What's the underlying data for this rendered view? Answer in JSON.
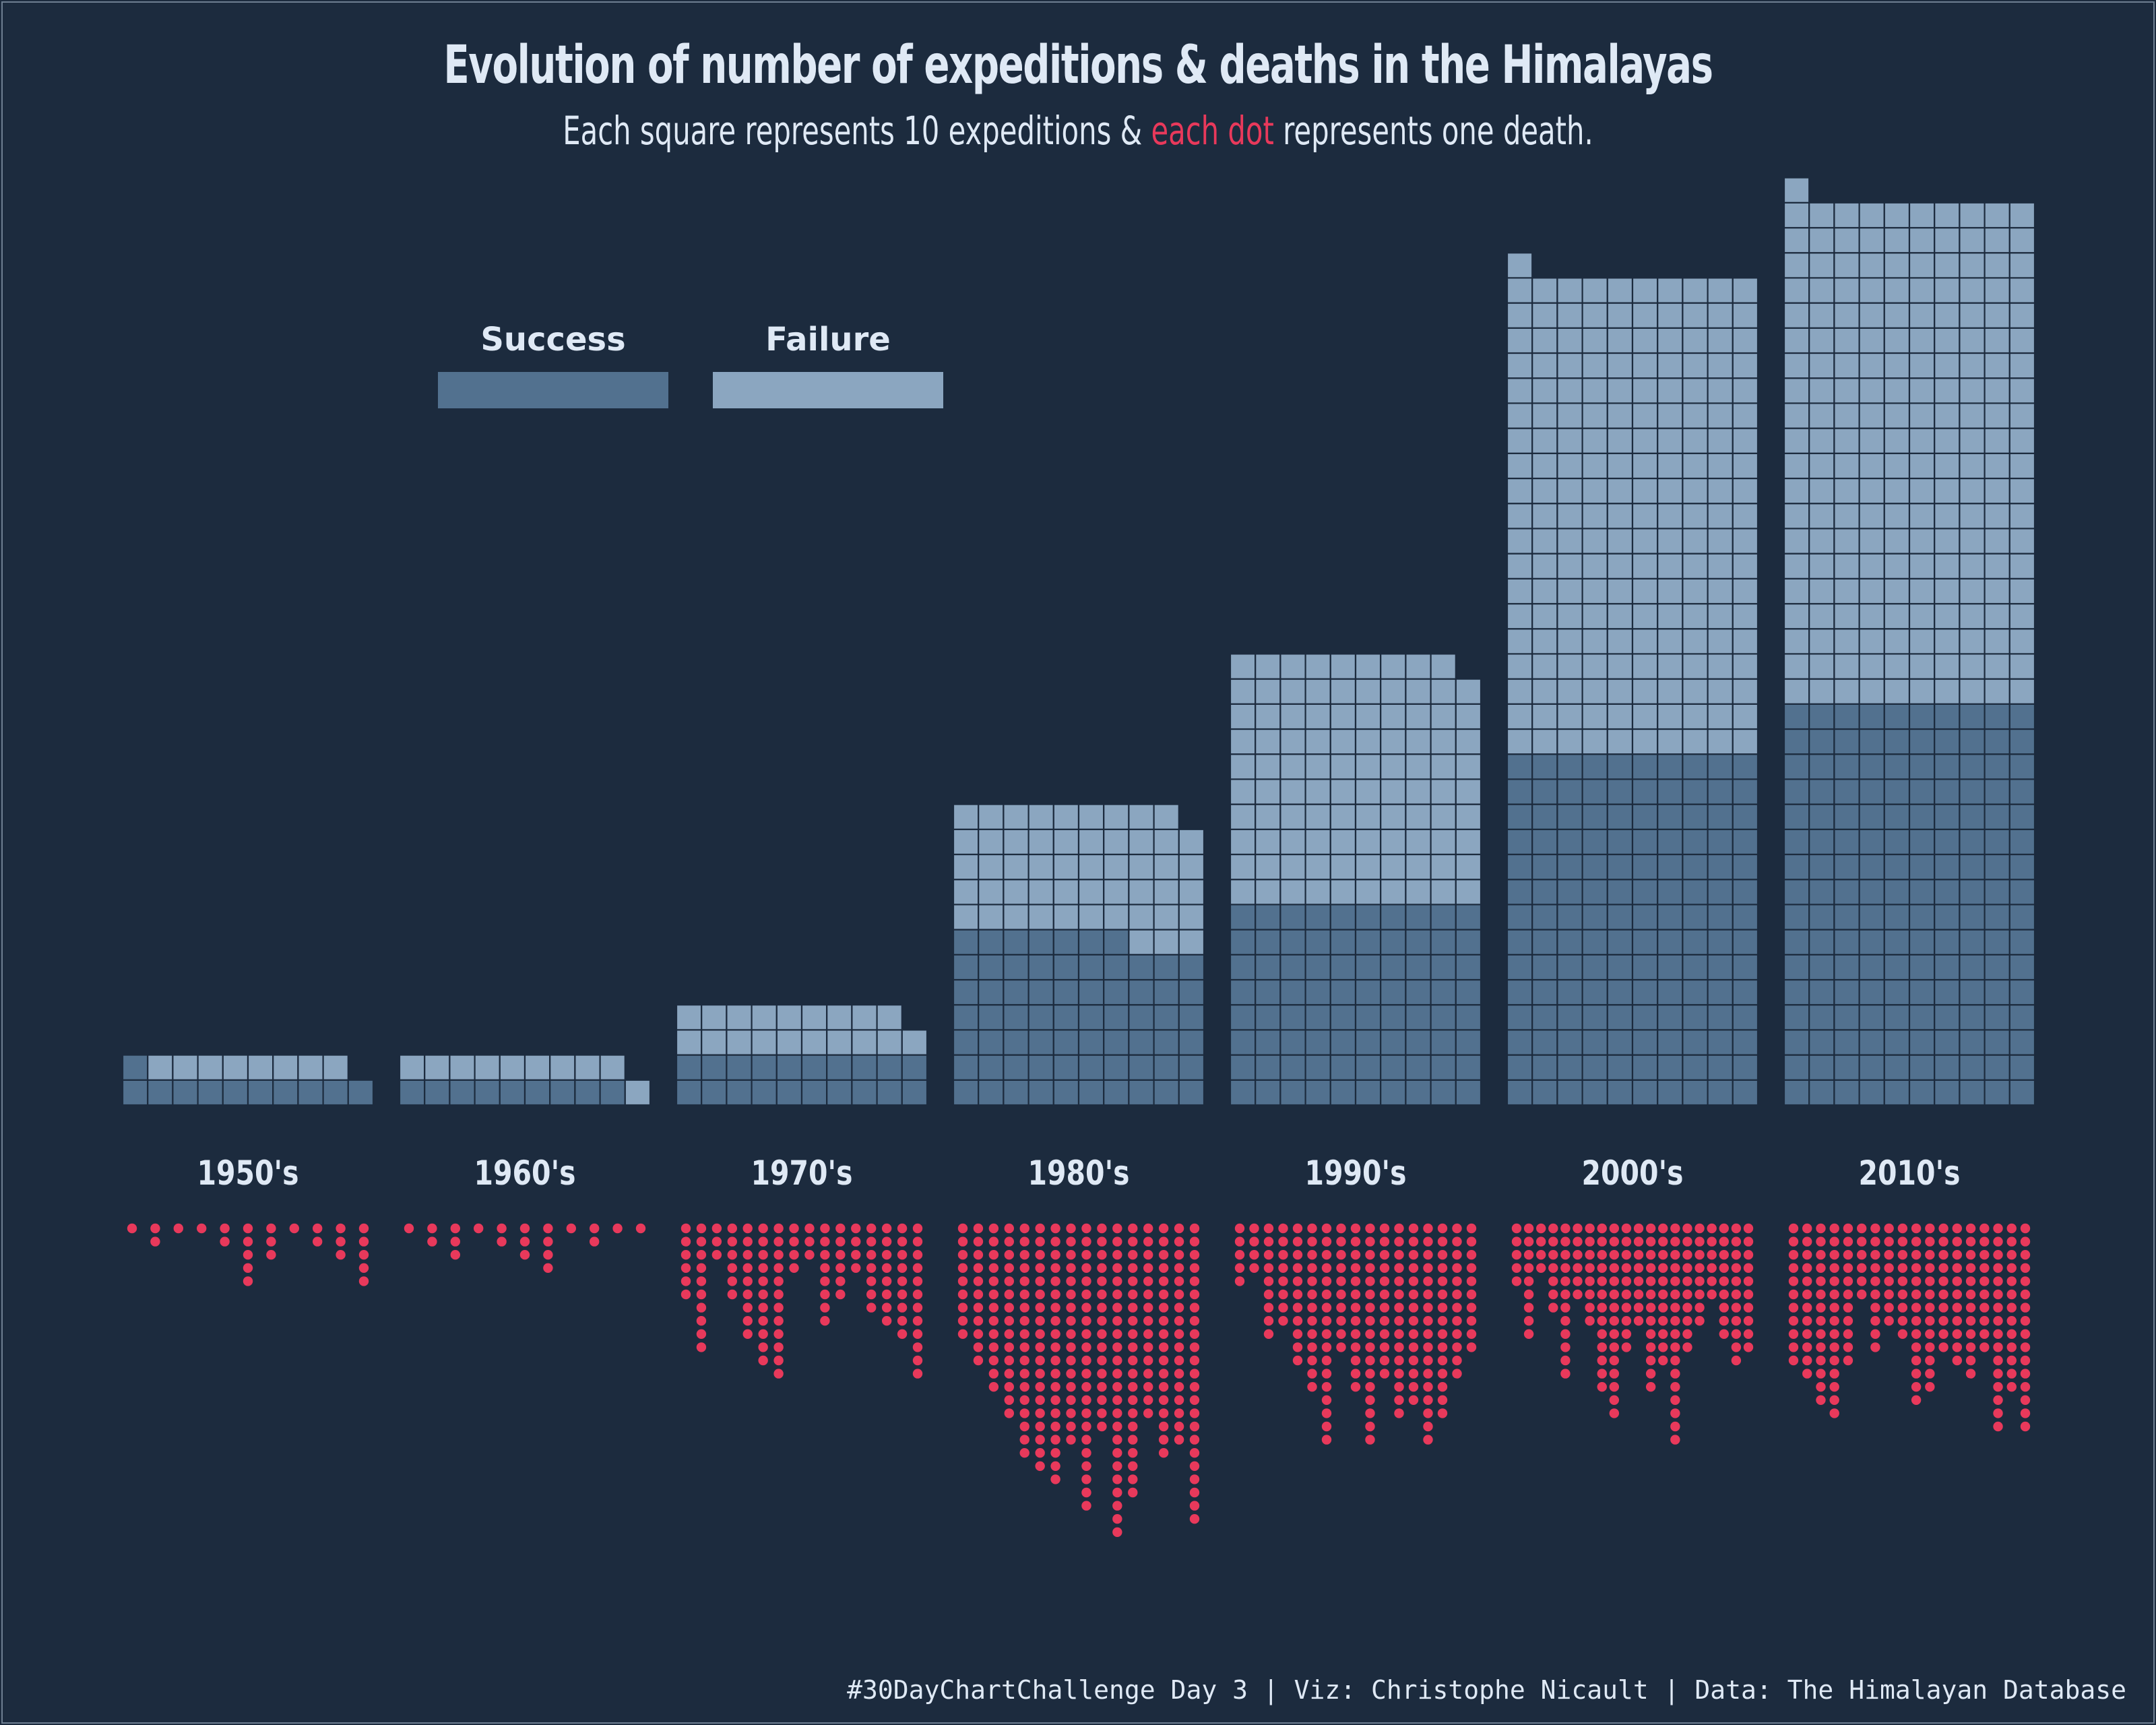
{
  "title": "Evolution of number of expeditions & deaths in the Himalayas",
  "subtitle": {
    "before": "Each square represents 10 expeditions & ",
    "highlight": "each dot",
    "after": " represents one death."
  },
  "caption": "#30DayChartChallenge Day 3 | Viz: Christophe Nicault | Data: The Himalayan Database",
  "colors": {
    "background": "#1c2b3e",
    "success": "#52718f",
    "failure": "#8ba6c0",
    "death_dot": "#e8395b",
    "text": "#dfe9f5"
  },
  "chart_data": {
    "type": "waffle",
    "unit_square": 10,
    "unit_dot": 1,
    "grid_columns": 10,
    "legend": {
      "success_label": "Success",
      "failure_label": "Failure",
      "placement": "top-left"
    },
    "categories": [
      "1950's",
      "1960's",
      "1970's",
      "1980's",
      "1990's",
      "2000's",
      "2010's"
    ],
    "series": [
      {
        "name": "Success",
        "values": [
          11,
          9,
          20,
          67,
          80,
          140,
          160
        ]
      },
      {
        "name": "Failure",
        "values": [
          8,
          10,
          19,
          52,
          99,
          191,
          201
        ]
      }
    ],
    "deaths": [
      [
        1,
        2,
        1,
        1,
        2,
        5,
        3,
        1,
        2,
        3,
        5
      ],
      [
        1,
        2,
        3,
        1,
        2,
        3,
        4,
        1,
        2,
        1,
        1
      ],
      [
        6,
        10,
        3,
        6,
        9,
        11,
        12,
        4,
        3,
        8,
        6,
        4,
        7,
        8,
        9,
        12
      ],
      [
        9,
        11,
        13,
        15,
        18,
        19,
        20,
        17,
        22,
        16,
        24,
        21,
        15,
        18,
        17,
        23
      ],
      [
        5,
        4,
        9,
        8,
        11,
        13,
        17,
        10,
        13,
        17,
        12,
        15,
        14,
        17,
        15,
        12,
        10
      ],
      [
        5,
        9,
        4,
        7,
        12,
        6,
        8,
        13,
        15,
        10,
        8,
        13,
        11,
        17,
        10,
        8,
        6,
        9,
        11,
        10
      ],
      [
        11,
        12,
        14,
        15,
        11,
        6,
        10,
        8,
        9,
        14,
        13,
        10,
        11,
        12,
        10,
        16,
        13,
        16
      ]
    ]
  }
}
